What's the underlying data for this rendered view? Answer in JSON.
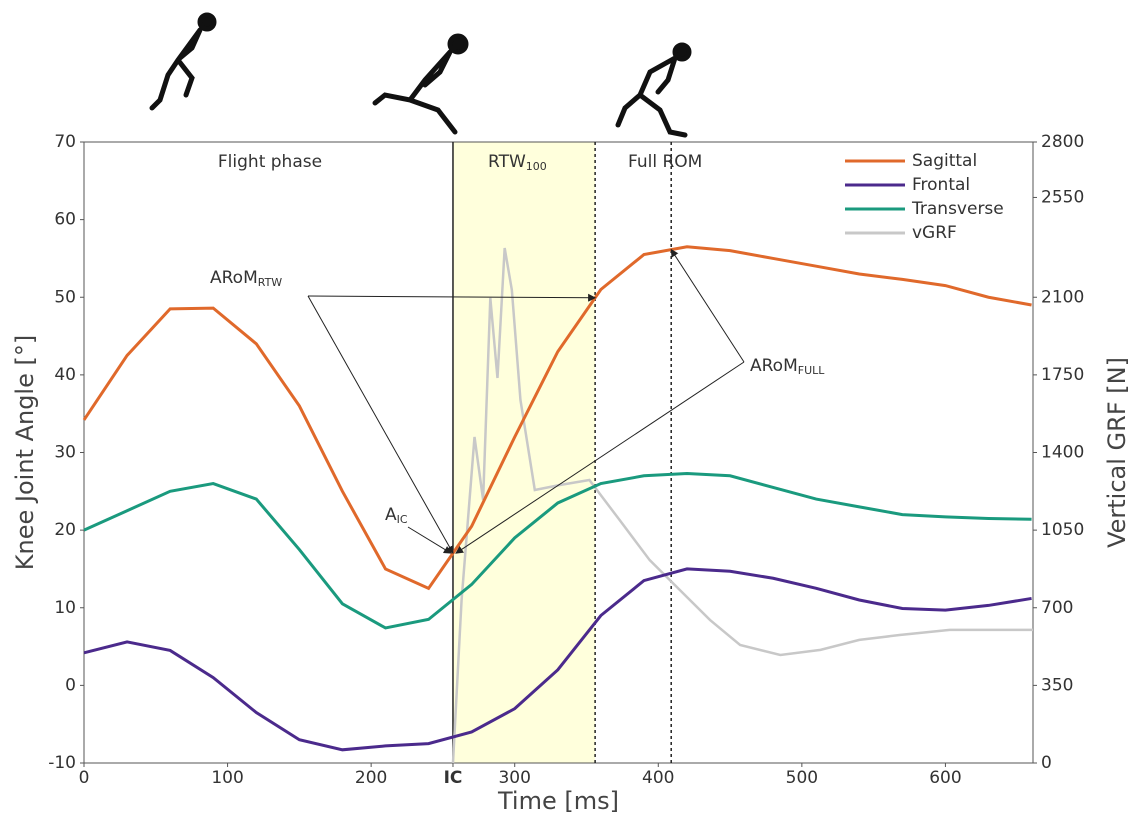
{
  "chart_data": {
    "type": "line",
    "xlabel": "Time [ms]",
    "ylabel": "Knee Joint Angle [°]",
    "y2label": "Vertical GRF [N]",
    "xlim": [
      0,
      661
    ],
    "ylim": [
      -10,
      70
    ],
    "y2lim": [
      0,
      2800
    ],
    "xticks": [
      0,
      100,
      200,
      {
        "value": 257,
        "label": "IC"
      },
      300,
      400,
      500,
      600
    ],
    "yticks": [
      -10,
      0,
      10,
      20,
      30,
      40,
      50,
      60,
      70
    ],
    "y2ticks": [
      0,
      350,
      700,
      1050,
      1400,
      1750,
      2100,
      2550,
      2800
    ],
    "legend": "upper right",
    "phase_label": "Flight phase",
    "shaded_region": {
      "range": [
        257,
        356
      ],
      "color": "#ffffdc",
      "label": {
        "text": "RTW",
        "sub": "100"
      }
    },
    "full_rom": {
      "x": 409,
      "label": "Full ROM"
    },
    "annotations": [
      {
        "text": "A",
        "sub": "IC"
      },
      {
        "text": "ARoM",
        "sub": "RTW"
      },
      {
        "text": "ARoM",
        "sub": "FULL"
      }
    ],
    "x": [
      0,
      30,
      60,
      90,
      120,
      150,
      180,
      210,
      240,
      270,
      300,
      330,
      360,
      390,
      420,
      450,
      480,
      510,
      540,
      570,
      600,
      630,
      660
    ],
    "series": [
      {
        "name": "Sagittal",
        "color": "#e0692b",
        "values": [
          34.2,
          42.5,
          48.5,
          48.6,
          44,
          36,
          25,
          15,
          12.5,
          20.5,
          32,
          43,
          51,
          55.5,
          56.5,
          56,
          55,
          54,
          53,
          52.3,
          51.5,
          50,
          49
        ]
      },
      {
        "name": "Frontal",
        "color": "#4b2a8c",
        "values": [
          4.2,
          5.6,
          4.5,
          1,
          -3.5,
          -7,
          -8.3,
          -7.8,
          -7.5,
          -6,
          -3,
          2,
          9,
          13.5,
          15,
          14.7,
          13.8,
          12.5,
          11,
          9.9,
          9.7,
          10.3,
          11.2
        ]
      },
      {
        "name": "Transverse",
        "color": "#1a9a7e",
        "values": [
          20,
          22.5,
          25,
          26,
          24,
          17.5,
          10.5,
          7.4,
          8.5,
          13,
          19,
          23.5,
          26,
          27,
          27.3,
          27,
          25.5,
          24,
          23,
          22,
          21.7,
          21.5,
          21.4
        ]
      },
      {
        "name": "vGRF",
        "color": "#c8c8c8",
        "axis": "y2",
        "x": [
          257,
          263,
          272,
          278,
          283,
          288,
          293,
          298,
          304,
          314,
          331,
          352,
          373,
          394,
          415,
          436,
          457,
          485,
          513,
          540,
          568,
          603,
          661
        ],
        "values": [
          0,
          735,
          1470,
          1186,
          2097,
          1736,
          2322,
          2133,
          1637,
          1231,
          1253,
          1276,
          1096,
          915,
          780,
          645,
          532,
          487,
          510,
          555,
          577,
          600,
          600
        ]
      }
    ]
  }
}
